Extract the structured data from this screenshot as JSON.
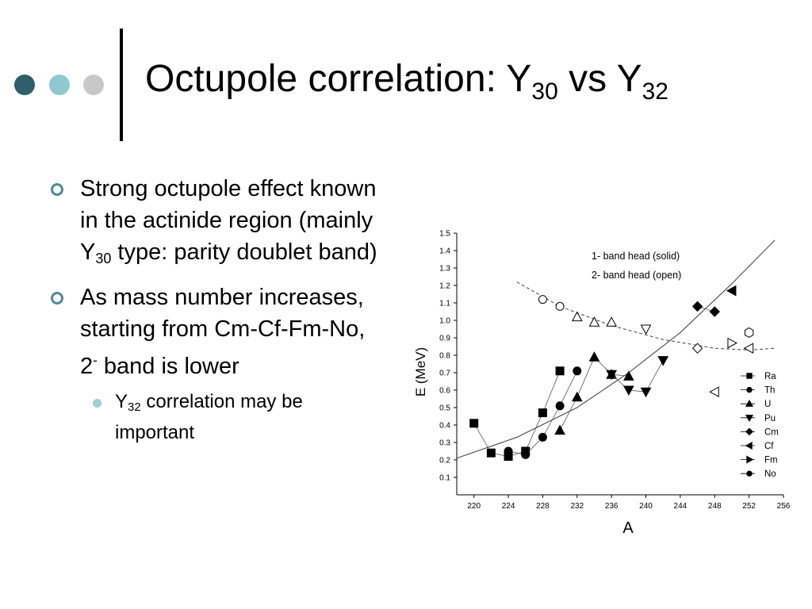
{
  "slide": {
    "title": {
      "main": "Octupole correlation: Y",
      "sub1": "30",
      "mid": " vs Y",
      "sub2": "32"
    },
    "colors": {
      "dot1": "#2e5e68",
      "dot2": "#8ec9cf",
      "dot3": "#c8c8c8",
      "bullet": "#4f8a9a",
      "sub_bullet": "#9ad0d6"
    },
    "bullets": [
      {
        "parts": [
          "Strong octupole effect known in the actinide region (mainly Y",
          "30",
          " type: parity doublet band)"
        ]
      },
      {
        "parts": [
          "As mass number increases, starting from Cm-Cf-Fm-No, 2",
          "-",
          " band is lower"
        ]
      }
    ],
    "sub_bullet": {
      "parts": [
        "Y",
        "32",
        " correlation may be important"
      ]
    }
  },
  "chart_data": {
    "type": "scatter",
    "xlabel": "A",
    "ylabel": "E (MeV)",
    "xlim": [
      218,
      256
    ],
    "ylim": [
      0.0,
      1.5
    ],
    "xticks": [
      220,
      224,
      228,
      232,
      236,
      240,
      244,
      248,
      252,
      256
    ],
    "yticks": [
      0.1,
      0.2,
      0.3,
      0.4,
      0.5,
      0.6,
      0.7,
      0.8,
      0.9,
      1.0,
      1.1,
      1.2,
      1.3,
      1.4,
      1.5
    ],
    "annotations": [
      "1- band head (solid)",
      "2- band head (open)"
    ],
    "series": [
      {
        "name": "Ra",
        "marker": "square",
        "points": [
          [
            220,
            0.41
          ],
          [
            222,
            0.24
          ],
          [
            224,
            0.22
          ],
          [
            226,
            0.25
          ],
          [
            228,
            0.47
          ],
          [
            230,
            0.71
          ]
        ]
      },
      {
        "name": "Th",
        "marker": "circle",
        "points": [
          [
            224,
            0.25
          ],
          [
            226,
            0.23
          ],
          [
            228,
            0.33
          ],
          [
            230,
            0.51
          ],
          [
            232,
            0.71
          ]
        ]
      },
      {
        "name": "U",
        "marker": "triangle-up",
        "points": [
          [
            230,
            0.37
          ],
          [
            232,
            0.56
          ],
          [
            234,
            0.79
          ],
          [
            236,
            0.69
          ],
          [
            238,
            0.68
          ]
        ]
      },
      {
        "name": "Pu",
        "marker": "triangle-down",
        "points": [
          [
            236,
            0.69
          ],
          [
            238,
            0.6
          ],
          [
            240,
            0.59
          ],
          [
            242,
            0.77
          ]
        ]
      },
      {
        "name": "Cm",
        "marker": "diamond",
        "points": [
          [
            246,
            1.08
          ],
          [
            248,
            1.05
          ]
        ]
      },
      {
        "name": "Cf",
        "marker": "triangle-left",
        "points": [
          [
            250,
            1.17
          ]
        ]
      },
      {
        "name": "Fm",
        "marker": "triangle-right",
        "points": []
      },
      {
        "name": "No",
        "marker": "circle",
        "points": []
      }
    ],
    "open_points": [
      {
        "marker": "circle",
        "points": [
          [
            228,
            1.12
          ],
          [
            230,
            1.08
          ]
        ]
      },
      {
        "marker": "triangle-up",
        "points": [
          [
            232,
            1.02
          ],
          [
            234,
            0.99
          ]
        ]
      },
      {
        "marker": "triangle-up",
        "points": [
          [
            236,
            0.99
          ]
        ]
      },
      {
        "marker": "triangle-down",
        "points": [
          [
            240,
            0.95
          ]
        ]
      },
      {
        "marker": "diamond",
        "points": [
          [
            246,
            0.84
          ]
        ]
      },
      {
        "marker": "triangle-left",
        "points": [
          [
            248,
            0.59
          ]
        ]
      },
      {
        "marker": "triangle-right",
        "points": [
          [
            250,
            0.87
          ]
        ]
      },
      {
        "marker": "hexagon",
        "points": [
          [
            252,
            0.93
          ]
        ]
      },
      {
        "marker": "triangle-left",
        "points": [
          [
            252,
            0.84
          ]
        ]
      }
    ],
    "trend_solid": [
      [
        218,
        0.21
      ],
      [
        225,
        0.33
      ],
      [
        232,
        0.5
      ],
      [
        238,
        0.7
      ],
      [
        244,
        0.93
      ],
      [
        250,
        1.21
      ],
      [
        255,
        1.46
      ]
    ],
    "trend_dashed": [
      [
        225,
        1.22
      ],
      [
        230,
        1.08
      ],
      [
        236,
        0.97
      ],
      [
        242,
        0.89
      ],
      [
        248,
        0.84
      ],
      [
        252,
        0.83
      ],
      [
        255,
        0.84
      ]
    ]
  }
}
